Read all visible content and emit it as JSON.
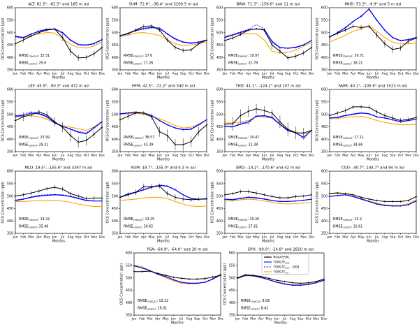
{
  "figure": {
    "ylabel": "OCS Concentration (ppt)",
    "xlabel": "Months",
    "months": [
      "Jan",
      "Feb",
      "Mar",
      "Apr",
      "May",
      "Jun",
      "Jul",
      "Aug",
      "Sep",
      "Oct",
      "Nov",
      "Dec"
    ],
    "ylim": [
      350,
      600
    ],
    "yticks": [
      350,
      400,
      450,
      500,
      550,
      600
    ],
    "colors": {
      "obs": "#000000",
      "tomcat": "#0000ff",
      "control": "#ffa500"
    },
    "rmse_label": {
      "base": "RMSE",
      "tomcat_sub": "TOMCAT",
      "control_sub": "Control"
    },
    "legend": {
      "entries": [
        {
          "base": "NOAA/ESRL",
          "sub": "",
          "suffix": "",
          "color": "#000000",
          "dash": false,
          "marker": true
        },
        {
          "base": "TOMCAT",
          "sub": "OCS",
          "suffix": "",
          "color": "#0000ff",
          "dash": false,
          "marker": false
        },
        {
          "base": "TOMCAT",
          "sub": "OCS",
          "suffix": " - 2004",
          "color": "#0000ff",
          "dash": true,
          "marker": false
        },
        {
          "base": "TOMCAT",
          "sub": "Ctrl",
          "suffix": "",
          "color": "#ffa500",
          "dash": false,
          "marker": false
        }
      ]
    }
  },
  "chart_data": [
    {
      "type": "line",
      "station": "ALT",
      "title": "ALT: 82.5°, -62.5° and 185 m asl",
      "row": 0,
      "col": 0,
      "rmse_tomcat": "32.51",
      "rmse_control": "25.6",
      "legend": false,
      "series": {
        "noaa": [
          455,
          470,
          486,
          500,
          510,
          514,
          480,
          425,
          398,
          400,
          415,
          440
        ],
        "noaa_err": [
          8,
          10,
          8,
          8,
          6,
          5,
          15,
          18,
          12,
          10,
          12,
          10
        ],
        "tomcat_ocs": [
          485,
          480,
          494,
          505,
          512,
          515,
          500,
          470,
          452,
          450,
          456,
          472
        ],
        "tomcat_ocs_2004": [
          483,
          478,
          492,
          508,
          515,
          513,
          497,
          468,
          450,
          448,
          453,
          470
        ],
        "tomcat_ctrl": [
          483,
          477,
          488,
          495,
          500,
          498,
          478,
          452,
          440,
          438,
          446,
          462
        ]
      }
    },
    {
      "type": "line",
      "station": "SUM",
      "title": "SUM: 72.6°, -38.4° and 3209.5 m asl",
      "row": 0,
      "col": 1,
      "rmse_tomcat": "17.6",
      "rmse_control": "17.26",
      "legend": false,
      "series": {
        "noaa": [
          487,
          495,
          510,
          525,
          527,
          510,
          470,
          440,
          428,
          430,
          455,
          470
        ],
        "noaa_err": [
          5,
          6,
          8,
          8,
          6,
          8,
          10,
          10,
          10,
          8,
          6,
          5
        ],
        "tomcat_ocs": [
          487,
          497,
          508,
          515,
          520,
          518,
          495,
          475,
          462,
          458,
          462,
          470
        ],
        "tomcat_ocs_2004": [
          485,
          498,
          511,
          518,
          522,
          515,
          493,
          472,
          460,
          456,
          460,
          468
        ],
        "tomcat_ctrl": [
          485,
          490,
          498,
          500,
          495,
          488,
          470,
          455,
          448,
          450,
          455,
          463
        ]
      }
    },
    {
      "type": "line",
      "station": "BRW",
      "title": "BRW: 71.3°, -156.6° and 11 m asl",
      "row": 0,
      "col": 2,
      "rmse_tomcat": "19.97",
      "rmse_control": "22.79",
      "legend": false,
      "series": {
        "noaa": [
          468,
          478,
          492,
          510,
          515,
          510,
          450,
          425,
          398,
          405,
          418,
          440
        ],
        "noaa_err": [
          8,
          8,
          6,
          5,
          5,
          8,
          15,
          12,
          10,
          10,
          10,
          8
        ],
        "tomcat_ocs": [
          480,
          490,
          500,
          510,
          515,
          512,
          465,
          440,
          437,
          440,
          450,
          468
        ],
        "tomcat_ocs_2004": [
          482,
          492,
          503,
          513,
          532,
          516,
          460,
          438,
          437,
          442,
          452,
          468
        ],
        "tomcat_ctrl": [
          485,
          492,
          495,
          495,
          495,
          470,
          425,
          418,
          420,
          430,
          445,
          460
        ]
      }
    },
    {
      "type": "line",
      "station": "MHD",
      "title": "MHD: 53.3°, -9.9° and 5 m asl",
      "row": 0,
      "col": 3,
      "rmse_tomcat": "39.71",
      "rmse_control": "16.21",
      "legend": false,
      "series": {
        "noaa": [
          483,
          497,
          510,
          525,
          520,
          525,
          490,
          455,
          432,
          438,
          465,
          478
        ],
        "noaa_err": [
          10,
          10,
          8,
          8,
          10,
          8,
          12,
          15,
          15,
          12,
          10,
          8
        ],
        "tomcat_ocs": [
          482,
          500,
          520,
          545,
          565,
          595,
          550,
          510,
          480,
          468,
          472,
          480
        ],
        "tomcat_ocs_2004": [
          480,
          498,
          518,
          543,
          568,
          592,
          548,
          508,
          478,
          466,
          470,
          478
        ],
        "tomcat_ctrl": [
          462,
          475,
          490,
          505,
          515,
          528,
          505,
          480,
          462,
          455,
          455,
          458
        ]
      }
    },
    {
      "type": "line",
      "station": "LEF",
      "title": "LEF: 45.9°, -90.3° and 472 m asl",
      "row": 1,
      "col": 0,
      "rmse_tomcat": "23.99",
      "rmse_control": "29.31",
      "legend": false,
      "series": {
        "noaa": [
          475,
          490,
          498,
          510,
          498,
          470,
          448,
          415,
          388,
          395,
          420,
          448
        ],
        "noaa_err": [
          15,
          18,
          12,
          10,
          15,
          18,
          20,
          25,
          22,
          20,
          15,
          12
        ],
        "tomcat_ocs": [
          492,
          495,
          505,
          502,
          490,
          465,
          452,
          440,
          428,
          422,
          445,
          470
        ],
        "tomcat_ocs_2004": [
          494,
          500,
          510,
          506,
          492,
          468,
          452,
          442,
          432,
          425,
          448,
          472
        ],
        "tomcat_ctrl": [
          490,
          492,
          495,
          490,
          480,
          465,
          455,
          448,
          442,
          435,
          450,
          468
        ]
      }
    },
    {
      "type": "line",
      "station": "HFM",
      "title": "HFM: 42.5°, -72.2° and 340 m asl",
      "row": 1,
      "col": 1,
      "rmse_tomcat": "38.57",
      "rmse_control": "43.39",
      "legend": false,
      "series": {
        "noaa": [
          478,
          492,
          505,
          505,
          490,
          430,
          415,
          378,
          378,
          390,
          430,
          458
        ],
        "noaa_err": [
          10,
          12,
          8,
          8,
          12,
          20,
          25,
          22,
          25,
          22,
          18,
          12
        ],
        "tomcat_ocs": [
          502,
          505,
          508,
          505,
          495,
          475,
          458,
          445,
          438,
          440,
          458,
          478
        ],
        "tomcat_ocs_2004": [
          503,
          507,
          510,
          506,
          496,
          476,
          459,
          446,
          440,
          442,
          460,
          479
        ],
        "tomcat_ctrl": [
          500,
          502,
          505,
          500,
          492,
          482,
          470,
          455,
          445,
          448,
          460,
          478
        ]
      }
    },
    {
      "type": "line",
      "station": "THD",
      "title": "THD: 41.1°, -124.2° and 107 m asl",
      "row": 1,
      "col": 2,
      "rmse_tomcat": "19.47",
      "rmse_control": "21.38",
      "legend": false,
      "series": {
        "noaa": [
          460,
          462,
          495,
          512,
          522,
          515,
          505,
          470,
          440,
          425,
          425,
          435
        ],
        "noaa_err": [
          25,
          28,
          25,
          22,
          20,
          18,
          15,
          25,
          28,
          25,
          20,
          15
        ],
        "tomcat_ocs": [
          452,
          450,
          460,
          470,
          492,
          495,
          488,
          460,
          435,
          425,
          408,
          435
        ],
        "tomcat_ocs_2004": [
          450,
          448,
          466,
          463,
          496,
          490,
          485,
          458,
          432,
          428,
          400,
          438
        ],
        "tomcat_ctrl": [
          465,
          465,
          470,
          475,
          490,
          490,
          485,
          462,
          438,
          430,
          420,
          432
        ]
      }
    },
    {
      "type": "line",
      "station": "NWR",
      "title": "NWR: 40.1°, -105.6° and 3523 m asl",
      "row": 1,
      "col": 3,
      "rmse_tomcat": "17.11",
      "rmse_control": "34.68",
      "legend": false,
      "series": {
        "noaa": [
          495,
          505,
          515,
          530,
          530,
          528,
          510,
          495,
          485,
          475,
          480,
          487
        ],
        "noaa_err": [
          8,
          8,
          10,
          8,
          8,
          8,
          10,
          10,
          12,
          10,
          8,
          8
        ],
        "tomcat_ocs": [
          485,
          487,
          495,
          500,
          505,
          502,
          490,
          485,
          478,
          470,
          475,
          480
        ],
        "tomcat_ocs_2004": [
          486,
          489,
          497,
          502,
          507,
          503,
          491,
          486,
          479,
          471,
          476,
          481
        ],
        "tomcat_ctrl": [
          482,
          483,
          488,
          490,
          492,
          485,
          475,
          468,
          462,
          458,
          458,
          460
        ]
      }
    },
    {
      "type": "line",
      "station": "MLO",
      "title": "MLO: 19.5°, -155.6° and 3397 m asl",
      "row": 2,
      "col": 0,
      "rmse_tomcat": "19.22",
      "rmse_control": "35.48",
      "legend": false,
      "series": {
        "noaa": [
          500,
          505,
          512,
          520,
          530,
          535,
          528,
          510,
          500,
          490,
          492,
          492
        ],
        "noaa_err": [
          8,
          8,
          8,
          8,
          8,
          8,
          8,
          8,
          8,
          8,
          8,
          8
        ],
        "tomcat_ocs": [
          482,
          487,
          495,
          500,
          503,
          505,
          503,
          498,
          490,
          482,
          480,
          480
        ],
        "tomcat_ocs_2004": [
          484,
          489,
          497,
          503,
          506,
          507,
          505,
          500,
          492,
          484,
          481,
          481
        ],
        "tomcat_ctrl": [
          478,
          478,
          480,
          482,
          483,
          483,
          480,
          475,
          468,
          462,
          458,
          458
        ]
      }
    },
    {
      "type": "line",
      "station": "KUM",
      "title": "KUM: 19.7°, -155.0° and 0.3 m asl",
      "row": 2,
      "col": 1,
      "rmse_tomcat": "13.25",
      "rmse_control": "30.65",
      "legend": false,
      "series": {
        "noaa": [
          495,
          505,
          515,
          538,
          538,
          540,
          510,
          495,
          488,
          485,
          487,
          490
        ],
        "noaa_err": [
          8,
          10,
          12,
          12,
          12,
          10,
          12,
          12,
          10,
          8,
          8,
          8
        ],
        "tomcat_ocs": [
          495,
          508,
          515,
          525,
          535,
          543,
          540,
          525,
          505,
          490,
          487,
          488
        ],
        "tomcat_ocs_2004": [
          496,
          510,
          517,
          527,
          537,
          545,
          541,
          526,
          506,
          491,
          488,
          489
        ],
        "tomcat_ctrl": [
          482,
          485,
          488,
          492,
          495,
          495,
          490,
          478,
          468,
          460,
          458,
          460
        ]
      }
    },
    {
      "type": "line",
      "station": "SMO",
      "title": "SMO: -14.2°, -170.6° and 42 m asl",
      "row": 2,
      "col": 2,
      "rmse_tomcat": "19.26",
      "rmse_control": "27.61",
      "legend": false,
      "series": {
        "noaa": [
          505,
          510,
          518,
          518,
          512,
          505,
          498,
          493,
          493,
          498,
          500,
          505
        ],
        "noaa_err": [
          6,
          6,
          8,
          8,
          8,
          6,
          6,
          6,
          6,
          8,
          6,
          6
        ],
        "tomcat_ocs": [
          487,
          485,
          490,
          495,
          492,
          488,
          482,
          478,
          478,
          480,
          483,
          487
        ],
        "tomcat_ocs_2004": [
          488,
          487,
          492,
          497,
          494,
          489,
          483,
          479,
          479,
          481,
          484,
          488
        ],
        "tomcat_ctrl": [
          483,
          480,
          485,
          488,
          485,
          480,
          475,
          470,
          468,
          470,
          472,
          475
        ]
      }
    },
    {
      "type": "line",
      "station": "CGO",
      "title": "CGO: -40.7°, 144.7° and 94 m asl",
      "row": 2,
      "col": 3,
      "rmse_tomcat": "15.2",
      "rmse_control": "10.61",
      "legend": false,
      "series": {
        "noaa": [
          510,
          512,
          510,
          505,
          495,
          488,
          482,
          478,
          478,
          478,
          482,
          498
        ],
        "noaa_err": [
          4,
          4,
          4,
          4,
          4,
          4,
          4,
          4,
          4,
          4,
          4,
          4
        ],
        "tomcat_ocs": [
          498,
          502,
          505,
          498,
          488,
          478,
          468,
          462,
          460,
          460,
          465,
          480
        ],
        "tomcat_ocs_2004": [
          499,
          503,
          506,
          499,
          489,
          479,
          469,
          463,
          461,
          461,
          466,
          481
        ],
        "tomcat_ctrl": [
          510,
          515,
          510,
          500,
          490,
          480,
          472,
          465,
          462,
          462,
          470,
          485
        ]
      }
    },
    {
      "type": "line",
      "station": "PSA",
      "title": "PSA: -64.9°, -64.0° and 10 m asl",
      "row": 3,
      "col": 0,
      "rmse_tomcat": "13.12",
      "rmse_control": "16.01",
      "legend": false,
      "series": {
        "noaa": [
          525,
          525,
          527,
          518,
          510,
          502,
          498,
          495,
          495,
          497,
          503,
          510
        ],
        "noaa_err": [
          4,
          5,
          5,
          4,
          4,
          4,
          4,
          4,
          5,
          8,
          5,
          4
        ],
        "tomcat_ocs": [
          548,
          540,
          528,
          515,
          505,
          492,
          482,
          478,
          478,
          482,
          495,
          512
        ],
        "tomcat_ocs_2004": [
          549,
          541,
          529,
          516,
          506,
          493,
          483,
          479,
          479,
          483,
          496,
          513
        ],
        "tomcat_ctrl": [
          552,
          545,
          530,
          515,
          500,
          488,
          478,
          475,
          477,
          482,
          497,
          515
        ]
      }
    },
    {
      "type": "line",
      "station": "SPO",
      "title": "SPO: -90.0°, -24.8° and 2810 m asl",
      "row": 3,
      "col": 1,
      "rmse_tomcat": "8.08",
      "rmse_control": "8.41",
      "legend": true,
      "series": {
        "noaa": [
          500,
          512,
          510,
          505,
          498,
          490,
          485,
          480,
          478,
          480,
          485,
          495
        ],
        "noaa_err": [
          3,
          3,
          3,
          3,
          3,
          3,
          3,
          3,
          3,
          3,
          3,
          3
        ],
        "tomcat_ocs": [
          498,
          510,
          508,
          502,
          492,
          482,
          475,
          470,
          470,
          473,
          480,
          490
        ],
        "tomcat_ocs_2004": [
          499,
          511,
          509,
          503,
          493,
          483,
          476,
          471,
          471,
          474,
          481,
          491
        ],
        "tomcat_ctrl": [
          497,
          508,
          507,
          500,
          492,
          483,
          476,
          472,
          472,
          475,
          482,
          492
        ]
      }
    }
  ]
}
